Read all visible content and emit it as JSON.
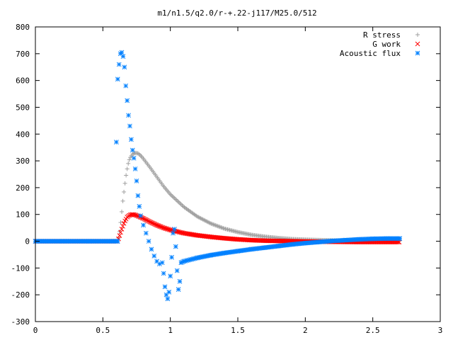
{
  "chart_data": {
    "type": "scatter",
    "title": "m1/n1.5/q2.0/r-+.22-j117/M25.0/512",
    "xlim": [
      0,
      3
    ],
    "ylim": [
      -300,
      800
    ],
    "xticks": [
      "0",
      "0.5",
      "1",
      "1.5",
      "2",
      "2.5",
      "3"
    ],
    "yticks": [
      "-300",
      "-200",
      "-100",
      "0",
      "100",
      "200",
      "300",
      "400",
      "500",
      "600",
      "700",
      "800"
    ],
    "grid": false,
    "legend_position": "top-right",
    "series": [
      {
        "name": "R stress",
        "marker": "plus",
        "color": "#a0a0a0",
        "points": [
          [
            0.0,
            0
          ],
          [
            0.2,
            0
          ],
          [
            0.4,
            0
          ],
          [
            0.61,
            0
          ],
          [
            0.62,
            20
          ],
          [
            0.63,
            60
          ],
          [
            0.64,
            110
          ],
          [
            0.65,
            160
          ],
          [
            0.66,
            200
          ],
          [
            0.67,
            240
          ],
          [
            0.68,
            270
          ],
          [
            0.69,
            295
          ],
          [
            0.7,
            310
          ],
          [
            0.72,
            325
          ],
          [
            0.74,
            330
          ],
          [
            0.76,
            328
          ],
          [
            0.78,
            320
          ],
          [
            0.8,
            308
          ],
          [
            0.85,
            275
          ],
          [
            0.9,
            240
          ],
          [
            0.95,
            205
          ],
          [
            1.0,
            175
          ],
          [
            1.1,
            128
          ],
          [
            1.2,
            92
          ],
          [
            1.3,
            66
          ],
          [
            1.4,
            47
          ],
          [
            1.5,
            34
          ],
          [
            1.6,
            24
          ],
          [
            1.7,
            17
          ],
          [
            1.8,
            12
          ],
          [
            1.9,
            8
          ],
          [
            2.0,
            6
          ],
          [
            2.2,
            3
          ],
          [
            2.4,
            2
          ],
          [
            2.6,
            1
          ],
          [
            2.7,
            0
          ]
        ]
      },
      {
        "name": "G work",
        "marker": "cross",
        "color": "#ff0000",
        "points": [
          [
            0.0,
            0
          ],
          [
            0.2,
            0
          ],
          [
            0.4,
            0
          ],
          [
            0.61,
            0
          ],
          [
            0.62,
            15
          ],
          [
            0.64,
            45
          ],
          [
            0.66,
            72
          ],
          [
            0.68,
            90
          ],
          [
            0.7,
            98
          ],
          [
            0.72,
            100
          ],
          [
            0.74,
            98
          ],
          [
            0.76,
            94
          ],
          [
            0.8,
            85
          ],
          [
            0.85,
            72
          ],
          [
            0.9,
            60
          ],
          [
            0.95,
            50
          ],
          [
            1.0,
            42
          ],
          [
            1.1,
            30
          ],
          [
            1.2,
            22
          ],
          [
            1.3,
            16
          ],
          [
            1.4,
            11
          ],
          [
            1.5,
            7
          ],
          [
            1.6,
            4
          ],
          [
            1.7,
            2
          ],
          [
            1.8,
            1
          ],
          [
            1.9,
            0
          ],
          [
            2.0,
            -1
          ],
          [
            2.2,
            -2
          ],
          [
            2.4,
            -3
          ],
          [
            2.6,
            -3
          ],
          [
            2.7,
            -3
          ]
        ]
      },
      {
        "name": "Acoustic flux",
        "marker": "star",
        "color": "#0080ff",
        "points": [
          [
            0.0,
            0
          ],
          [
            0.2,
            0
          ],
          [
            0.4,
            0
          ],
          [
            0.61,
            0
          ],
          [
            0.6,
            370
          ],
          [
            0.61,
            605
          ],
          [
            0.62,
            660
          ],
          [
            0.63,
            700
          ],
          [
            0.64,
            705
          ],
          [
            0.65,
            690
          ],
          [
            0.66,
            650
          ],
          [
            0.67,
            580
          ],
          [
            0.68,
            525
          ],
          [
            0.69,
            470
          ],
          [
            0.7,
            430
          ],
          [
            0.71,
            380
          ],
          [
            0.72,
            340
          ],
          [
            0.73,
            310
          ],
          [
            0.74,
            270
          ],
          [
            0.75,
            225
          ],
          [
            0.76,
            170
          ],
          [
            0.77,
            130
          ],
          [
            0.78,
            95
          ],
          [
            0.8,
            60
          ],
          [
            0.82,
            30
          ],
          [
            0.84,
            0
          ],
          [
            0.86,
            -30
          ],
          [
            0.88,
            -55
          ],
          [
            0.9,
            -75
          ],
          [
            0.92,
            -85
          ],
          [
            0.94,
            -80
          ],
          [
            0.95,
            -120
          ],
          [
            0.96,
            -170
          ],
          [
            0.97,
            -200
          ],
          [
            0.98,
            -215
          ],
          [
            0.99,
            -190
          ],
          [
            1.0,
            -130
          ],
          [
            1.01,
            -60
          ],
          [
            1.02,
            30
          ],
          [
            1.03,
            45
          ],
          [
            1.04,
            -20
          ],
          [
            1.05,
            -110
          ],
          [
            1.06,
            -180
          ],
          [
            1.07,
            -150
          ],
          [
            1.08,
            -80
          ],
          [
            1.1,
            -75
          ],
          [
            1.2,
            -62
          ],
          [
            1.3,
            -52
          ],
          [
            1.4,
            -44
          ],
          [
            1.5,
            -37
          ],
          [
            1.6,
            -30
          ],
          [
            1.7,
            -24
          ],
          [
            1.8,
            -18
          ],
          [
            1.9,
            -12
          ],
          [
            2.0,
            -7
          ],
          [
            2.1,
            -3
          ],
          [
            2.2,
            1
          ],
          [
            2.3,
            4
          ],
          [
            2.4,
            7
          ],
          [
            2.5,
            9
          ],
          [
            2.6,
            10
          ],
          [
            2.7,
            10
          ]
        ]
      }
    ]
  }
}
